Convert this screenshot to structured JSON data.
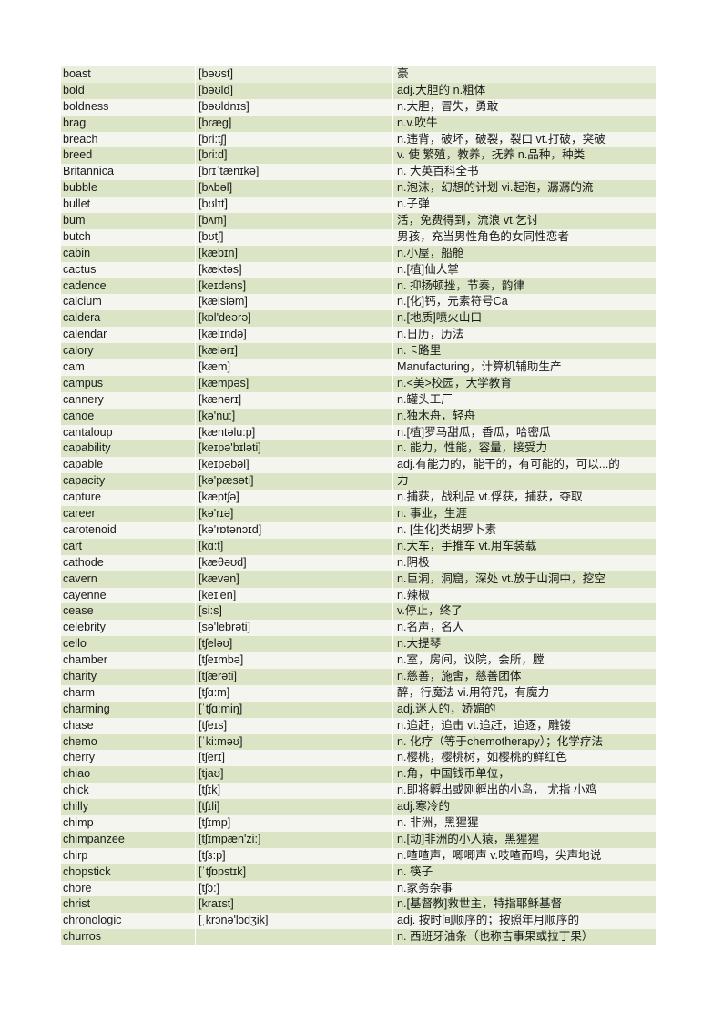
{
  "colors": {
    "row_shaded": "#dbe5c6",
    "row_plain": "#f3f5ee"
  },
  "rows": [
    [
      "boast",
      "[bəʊst]",
      "豪"
    ],
    [
      "bold",
      "[bəʊld]",
      "adj.大胆的 n.粗体"
    ],
    [
      "boldness",
      "[bəʊldnɪs]",
      "n.大胆，冒失，勇敢"
    ],
    [
      "brag",
      "[bræɡ]",
      "n.v.吹牛"
    ],
    [
      "breach",
      "[bri:tʃ]",
      "n.违背，破坏，破裂，裂口 vt.打破，突破"
    ],
    [
      "breed",
      "[bri:d]",
      "v. 使 繁殖，教养，抚养 n.品种，种类"
    ],
    [
      "Britannica",
      "[brɪˈtænɪkə]",
      "n. 大英百科全书"
    ],
    [
      "bubble",
      "[bʌbəl]",
      "n.泡沫，幻想的计划 vi.起泡，潺潺的流"
    ],
    [
      "bullet",
      "[bʊlɪt]",
      "n.子弹"
    ],
    [
      "bum",
      "[bʌm]",
      "活，免费得到，流浪 vt.乞讨"
    ],
    [
      "butch",
      "[bʊtʃ]",
      "男孩，充当男性角色的女同性恋者"
    ],
    [
      "cabin",
      "[kæbɪn]",
      "n.小屋，船舱"
    ],
    [
      "cactus",
      "[kæktəs]",
      "n.[植]仙人掌"
    ],
    [
      "cadence",
      "[keɪdəns]",
      "n. 抑扬顿挫，节奏，韵律"
    ],
    [
      "calcium",
      "[kælsiəm]",
      "n.[化]钙，元素符号Ca"
    ],
    [
      "caldera",
      "[kɒl'deərə]",
      "n.[地质]喷火山口"
    ],
    [
      "calendar",
      "[kælɪndə]",
      "n.日历，历法"
    ],
    [
      "calory",
      "[kælərɪ]",
      "n.卡路里"
    ],
    [
      "cam",
      "[kæm]",
      "Manufacturing，计算机辅助生产"
    ],
    [
      "campus",
      "[kæmpəs]",
      "n.<美>校园，大学教育"
    ],
    [
      "cannery",
      "[kænərɪ]",
      "n.罐头工厂"
    ],
    [
      "canoe",
      "[kə'nu:]",
      "n.独木舟，轻舟"
    ],
    [
      "cantaloup",
      "[kæntəlu:p]",
      "n.[植]罗马甜瓜，香瓜，哈密瓜"
    ],
    [
      "capability",
      "[keɪpə'bɪləti]",
      "n. 能力，性能，容量，接受力"
    ],
    [
      "capable",
      "[keɪpəbəl]",
      "adj.有能力的，能干的，有可能的，可以...的"
    ],
    [
      "capacity",
      "[kə'pæsəti]",
      "力"
    ],
    [
      "capture",
      "[kæptʃə]",
      "n.捕获，战利品 vt.俘获，捕获，夺取"
    ],
    [
      "career",
      "[kə'rɪə]",
      "n. 事业，生涯"
    ],
    [
      "carotenoid",
      "[kə'rɒtənɔɪd]",
      "n. [生化]类胡罗卜素"
    ],
    [
      "cart",
      "[kɑ:t]",
      "n.大车，手推车 vt.用车装载"
    ],
    [
      "cathode",
      "[kæθəʊd]",
      "n.阴极"
    ],
    [
      "cavern",
      "[kævən]",
      "n.巨洞，洞窟，深处 vt.放于山洞中，挖空"
    ],
    [
      "cayenne",
      "[keɪ'en]",
      "n.辣椒"
    ],
    [
      "cease",
      "[si:s]",
      "v.停止，终了"
    ],
    [
      "celebrity",
      "[sə'lebrəti]",
      "n.名声，名人"
    ],
    [
      "cello",
      "[tʃeləʊ]",
      "n.大提琴"
    ],
    [
      "chamber",
      "[tʃeɪmbə]",
      "n.室，房间，议院，会所，膛"
    ],
    [
      "charity",
      "[tʃærəti]",
      "n.慈善，施舍，慈善团体"
    ],
    [
      "charm",
      "[tʃɑ:m]",
      "醉，行魔法 vi.用符咒，有魔力"
    ],
    [
      "charming",
      "[ˈtʃɑ:miŋ]",
      "adj.迷人的，娇媚的"
    ],
    [
      "chase",
      "[tʃeɪs]",
      "n.追赶，追击 vt.追赶，追逐，雕镂"
    ],
    [
      "chemo",
      "[ˈki:məʊ]",
      "n. 化疗（等于chemotherapy）；化学疗法"
    ],
    [
      "cherry",
      "[tʃerɪ]",
      "n.樱桃，樱桃树，如樱桃的鲜红色"
    ],
    [
      "chiao",
      "[tjaʊ]",
      "n.角，中国钱币单位，"
    ],
    [
      "chick",
      "[tʃɪk]",
      "n.即将孵出或刚孵出的小鸟， 尤指 小鸡"
    ],
    [
      "chilly",
      "[tʃɪli]",
      "adj.寒冷的"
    ],
    [
      "chimp",
      "[tʃɪmp]",
      "n. 非洲，黑猩猩"
    ],
    [
      "chimpanzee",
      "[tʃɪmpæn'zi:]",
      "n.[动]非洲的小人猿，黑猩猩"
    ],
    [
      "chirp",
      "[tʃɜ:p]",
      "n.喳喳声，唧唧声 v.吱喳而鸣，尖声地说"
    ],
    [
      "chopstick",
      "[ˈtʃɒpstɪk]",
      "n. 筷子"
    ],
    [
      "chore",
      "[tʃɔ:]",
      "n.家务杂事"
    ],
    [
      "christ",
      "[kraɪst]",
      "n.[基督教]救世主，特指耶稣基督"
    ],
    [
      "chronologic",
      "[ˌkrɔnə'lɔdʒik]",
      "adj. 按时间顺序的；按照年月顺序的"
    ],
    [
      "churros",
      "",
      "n.  西班牙油条（也称吉事果或拉丁果）"
    ]
  ]
}
